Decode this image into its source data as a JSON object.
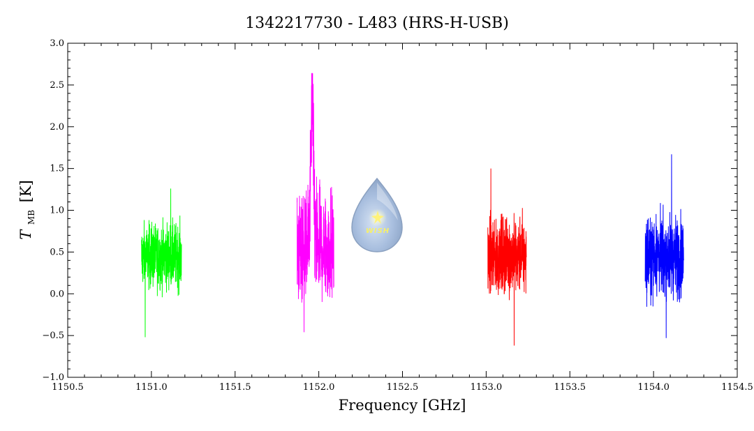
{
  "chart_data": {
    "type": "line",
    "title": "1342217730 - L483 (HRS-H-USB)",
    "xlabel": "Frequency [GHz]",
    "ylabel": {
      "symbol": "T",
      "subscript": "MB",
      "unit": "[K]"
    },
    "xlim": [
      1150.5,
      1154.5
    ],
    "ylim": [
      -1.0,
      3.0
    ],
    "xticks": [
      "1150.5",
      "1151.0",
      "1151.5",
      "1152.0",
      "1152.5",
      "1153.0",
      "1153.5",
      "1154.0",
      "1154.5"
    ],
    "yticks": [
      "-1.0",
      "-0.5",
      "0.0",
      "0.5",
      "1.0",
      "1.5",
      "2.0",
      "2.5",
      "3.0"
    ],
    "grid": false,
    "series": [
      {
        "color": "#00ff00",
        "x_range": [
          1150.94,
          1151.18
        ],
        "baseline": 0.45,
        "min": -0.52,
        "max": 1.26
      },
      {
        "color": "#ff00ff",
        "x_range": [
          1151.87,
          1152.09
        ],
        "baseline": 0.55,
        "min": -0.46,
        "max": 2.64,
        "peak_x": 1151.96
      },
      {
        "color": "#ff0000",
        "x_range": [
          1153.01,
          1153.24
        ],
        "baseline": 0.45,
        "min": -0.62,
        "max": 1.5
      },
      {
        "color": "#0000ff",
        "x_range": [
          1153.95,
          1154.18
        ],
        "baseline": 0.45,
        "min": -0.53,
        "max": 1.67
      }
    ]
  },
  "logo": {
    "text": "WISH"
  }
}
